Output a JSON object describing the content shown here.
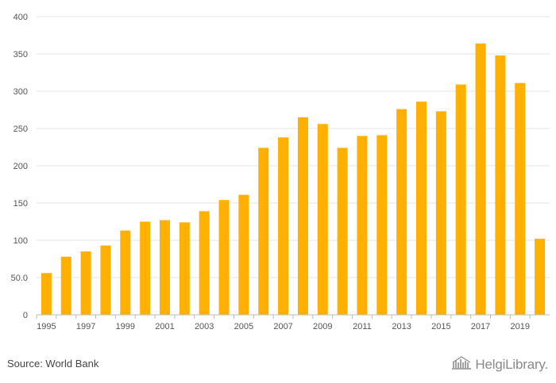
{
  "chart_data": {
    "type": "bar",
    "categories": [
      "1995",
      "1996",
      "1997",
      "1998",
      "1999",
      "2000",
      "2001",
      "2002",
      "2003",
      "2004",
      "2005",
      "2006",
      "2007",
      "2008",
      "2009",
      "2010",
      "2011",
      "2012",
      "2013",
      "2014",
      "2015",
      "2016",
      "2017",
      "2018",
      "2019",
      "2020"
    ],
    "x_tick_labels": [
      "1995",
      "1997",
      "1999",
      "2001",
      "2003",
      "2005",
      "2007",
      "2009",
      "2011",
      "2013",
      "2015",
      "2017",
      "2019"
    ],
    "values": [
      56,
      78,
      85,
      93,
      113,
      125,
      127,
      124,
      139,
      154,
      161,
      224,
      238,
      265,
      256,
      224,
      240,
      241,
      276,
      286,
      273,
      309,
      364,
      348,
      311,
      102
    ],
    "y_ticks": [
      "0",
      "50.0",
      "100",
      "150",
      "200",
      "250",
      "300",
      "350",
      "400"
    ],
    "ylim": [
      0,
      400
    ],
    "grid": true,
    "bar_color": "#FFB000",
    "title": "",
    "xlabel": "",
    "ylabel": ""
  },
  "footer": {
    "source": "Source: World Bank",
    "logo_text": "HelgiLibrary."
  }
}
